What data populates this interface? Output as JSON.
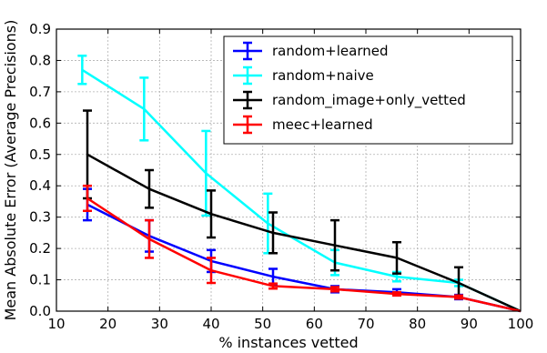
{
  "chart_data": {
    "type": "line",
    "xlabel": "% instances vetted",
    "ylabel": "Mean Absolute Error (Average Precisions)",
    "xlim": [
      10,
      100
    ],
    "ylim": [
      0.0,
      0.9
    ],
    "xticks": [
      "10",
      "20",
      "30",
      "40",
      "50",
      "60",
      "70",
      "80",
      "90",
      "100"
    ],
    "yticks": [
      "0.0",
      "0.1",
      "0.2",
      "0.3",
      "0.4",
      "0.5",
      "0.6",
      "0.7",
      "0.8",
      "0.9"
    ],
    "grid": true,
    "legend_position": "top-right",
    "series": [
      {
        "name": "random+learned",
        "color": "#0000ff",
        "x": [
          16,
          28,
          40,
          52,
          64,
          76,
          88,
          100
        ],
        "y": [
          0.34,
          0.24,
          0.16,
          0.11,
          0.07,
          0.06,
          0.045,
          0.0
        ],
        "err": [
          0.05,
          0.05,
          0.035,
          0.025,
          0.01,
          0.01,
          0.007,
          0.0
        ]
      },
      {
        "name": "random+naive",
        "color": "#00ffff",
        "x": [
          15,
          27,
          39,
          51,
          64,
          76,
          88,
          100
        ],
        "y": [
          0.77,
          0.645,
          0.44,
          0.28,
          0.155,
          0.11,
          0.09,
          0.0
        ],
        "err": [
          0.045,
          0.1,
          0.135,
          0.095,
          0.04,
          0.015,
          0.01,
          0.0
        ]
      },
      {
        "name": "random_image+only_vetted",
        "color": "#000000",
        "x": [
          16,
          28,
          40,
          52,
          64,
          76,
          88,
          100
        ],
        "y": [
          0.5,
          0.39,
          0.31,
          0.25,
          0.21,
          0.17,
          0.09,
          0.0
        ],
        "err": [
          0.14,
          0.06,
          0.075,
          0.065,
          0.08,
          0.05,
          0.05,
          0.0
        ]
      },
      {
        "name": "meec+learned",
        "color": "#ff0000",
        "x": [
          16,
          28,
          40,
          52,
          64,
          76,
          88,
          100
        ],
        "y": [
          0.36,
          0.23,
          0.13,
          0.08,
          0.07,
          0.055,
          0.045,
          0.0
        ],
        "err": [
          0.04,
          0.06,
          0.04,
          0.008,
          0.007,
          0.005,
          0.005,
          0.0
        ]
      }
    ]
  }
}
